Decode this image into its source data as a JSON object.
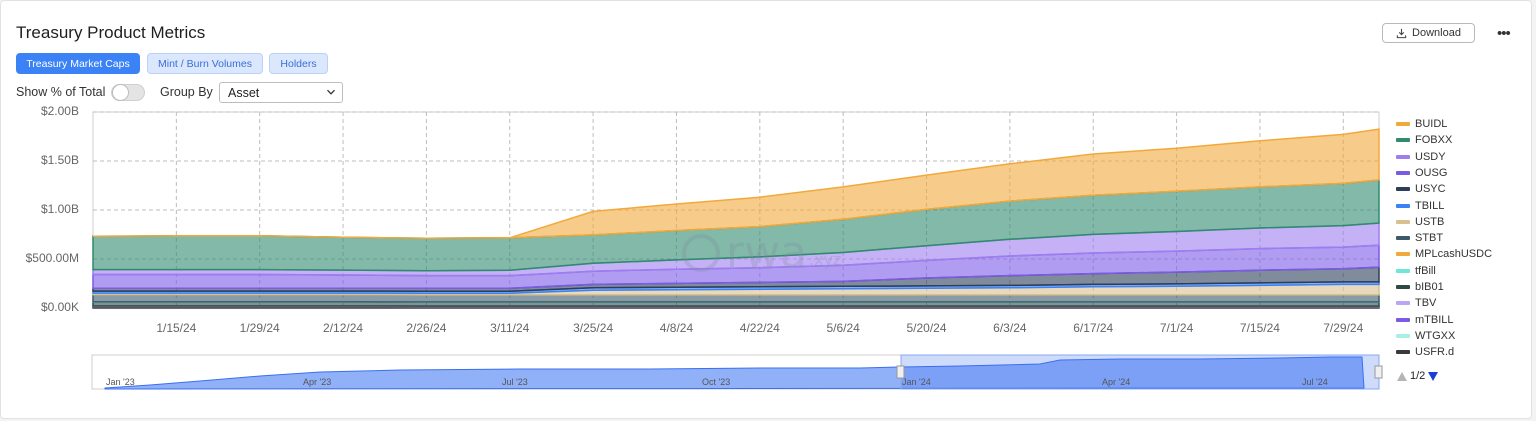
{
  "header": {
    "title": "Treasury Product Metrics",
    "download_label": "Download",
    "more_label": "•••"
  },
  "tabs": [
    {
      "label": "Treasury Market Caps",
      "active": true
    },
    {
      "label": "Mint / Burn Volumes",
      "active": false
    },
    {
      "label": "Holders",
      "active": false
    }
  ],
  "controls": {
    "show_pct_label": "Show % of Total",
    "show_pct_value": false,
    "group_by_label": "Group By",
    "group_by_value": "Asset"
  },
  "watermark": {
    "text": "rwa",
    "suffix": ".xyz"
  },
  "legend": {
    "items": [
      {
        "name": "BUIDL",
        "color": "#f2a93b"
      },
      {
        "name": "FOBXX",
        "color": "#2f8a6e"
      },
      {
        "name": "USDY",
        "color": "#9d7df0"
      },
      {
        "name": "OUSG",
        "color": "#7b5ae6"
      },
      {
        "name": "USYC",
        "color": "#2c3e5a"
      },
      {
        "name": "TBILL",
        "color": "#3b82f6"
      },
      {
        "name": "USTB",
        "color": "#d9c08f"
      },
      {
        "name": "STBT",
        "color": "#3b5a6b"
      },
      {
        "name": "MPLcashUSDC",
        "color": "#f2a93b"
      },
      {
        "name": "tfBill",
        "color": "#6ee7d8"
      },
      {
        "name": "bIB01",
        "color": "#2d4a45"
      },
      {
        "name": "TBV",
        "color": "#b9a7f5"
      },
      {
        "name": "mTBILL",
        "color": "#7b5ae6"
      },
      {
        "name": "WTGXX",
        "color": "#a8f0e6"
      },
      {
        "name": "USFR.d",
        "color": "#3a3a3a"
      }
    ],
    "page": "1/2"
  },
  "navigator": {
    "labels": [
      "Jan '23",
      "Apr '23",
      "Jul '23",
      "Oct '23",
      "Jan '24",
      "Apr '24",
      "Jul '24"
    ]
  },
  "chart_data": {
    "type": "area",
    "stacked": true,
    "title": "",
    "xlabel": "",
    "ylabel": "",
    "ylim": [
      0,
      2000000000
    ],
    "y_tick_labels": [
      "$2.00B",
      "$1.50B",
      "$1.00B",
      "$500.00M",
      "$0.00K"
    ],
    "y_tick_values": [
      2000000000,
      1500000000,
      1000000000,
      500000000,
      0
    ],
    "x_tick_labels": [
      "1/15/24",
      "1/29/24",
      "2/12/24",
      "2/26/24",
      "3/11/24",
      "3/25/24",
      "4/8/24",
      "4/22/24",
      "5/6/24",
      "5/20/24",
      "6/3/24",
      "6/17/24",
      "7/1/24",
      "7/15/24",
      "7/29/24"
    ],
    "x": [
      "2024-01-01",
      "2024-01-15",
      "2024-01-29",
      "2024-02-12",
      "2024-02-26",
      "2024-03-11",
      "2024-03-25",
      "2024-04-08",
      "2024-04-22",
      "2024-05-06",
      "2024-05-20",
      "2024-06-03",
      "2024-06-17",
      "2024-07-01",
      "2024-07-15",
      "2024-07-29",
      "2024-08-04"
    ],
    "grid": true,
    "legend_position": "right",
    "series": [
      {
        "name": "USFR.d",
        "color": "#3a3a3a",
        "values": [
          15,
          15,
          15,
          15,
          14,
          14,
          14,
          14,
          14,
          14,
          14,
          14,
          14,
          14,
          14,
          14,
          14
        ]
      },
      {
        "name": "WTGXX",
        "color": "#a8f0e6",
        "values": [
          0,
          0,
          0,
          0,
          0,
          0,
          0,
          0,
          0,
          0,
          0,
          0,
          0,
          0,
          0,
          0,
          0
        ]
      },
      {
        "name": "mTBILL",
        "color": "#7b5ae6",
        "values": [
          0,
          0,
          0,
          0,
          0,
          0,
          0,
          0,
          0,
          0,
          0,
          0,
          0,
          0,
          0,
          0,
          0
        ]
      },
      {
        "name": "TBV",
        "color": "#b9a7f5",
        "values": [
          5,
          5,
          5,
          5,
          5,
          5,
          5,
          5,
          5,
          5,
          5,
          5,
          5,
          5,
          5,
          5,
          5
        ]
      },
      {
        "name": "bIB01",
        "color": "#2d4a45",
        "values": [
          40,
          40,
          40,
          40,
          40,
          40,
          40,
          40,
          40,
          40,
          40,
          40,
          40,
          40,
          40,
          40,
          40
        ]
      },
      {
        "name": "tfBill",
        "color": "#6ee7d8",
        "values": [
          2,
          2,
          2,
          2,
          2,
          2,
          2,
          2,
          2,
          2,
          2,
          2,
          2,
          2,
          2,
          2,
          2
        ]
      },
      {
        "name": "MPLcashUSDC",
        "color": "#f2a93b",
        "values": [
          0,
          0,
          0,
          0,
          0,
          0,
          0,
          0,
          0,
          0,
          0,
          0,
          0,
          0,
          0,
          0,
          0
        ]
      },
      {
        "name": "STBT",
        "color": "#3b5a6b",
        "values": [
          75,
          75,
          75,
          75,
          75,
          75,
          75,
          75,
          75,
          75,
          75,
          75,
          75,
          75,
          75,
          75,
          75
        ]
      },
      {
        "name": "USTB",
        "color": "#d9c08f",
        "values": [
          15,
          15,
          15,
          15,
          15,
          15,
          45,
          50,
          55,
          60,
          65,
          70,
          80,
          85,
          95,
          105,
          105
        ]
      },
      {
        "name": "TBILL",
        "color": "#3b82f6",
        "values": [
          20,
          20,
          20,
          20,
          20,
          20,
          25,
          25,
          25,
          25,
          25,
          25,
          25,
          25,
          25,
          25,
          25
        ]
      },
      {
        "name": "USYC",
        "color": "#2c3e5a",
        "values": [
          30,
          30,
          30,
          30,
          30,
          30,
          35,
          40,
          45,
          50,
          80,
          100,
          110,
          120,
          130,
          135,
          150
        ]
      },
      {
        "name": "OUSG",
        "color": "#7b5ae6",
        "values": [
          140,
          140,
          140,
          135,
          130,
          130,
          135,
          145,
          150,
          165,
          180,
          200,
          210,
          215,
          220,
          220,
          225
        ]
      },
      {
        "name": "USDY",
        "color": "#9d7df0",
        "values": [
          50,
          50,
          50,
          50,
          50,
          55,
          80,
          95,
          110,
          130,
          150,
          170,
          190,
          200,
          210,
          220,
          225
        ]
      },
      {
        "name": "FOBXX",
        "color": "#2f8a6e",
        "values": [
          340,
          345,
          345,
          335,
          330,
          330,
          290,
          300,
          310,
          340,
          370,
          390,
          400,
          410,
          420,
          430,
          440
        ]
      },
      {
        "name": "BUIDL",
        "color": "#f2a93b",
        "values": [
          0,
          0,
          0,
          0,
          0,
          0,
          240,
          270,
          300,
          330,
          350,
          380,
          420,
          440,
          470,
          500,
          520
        ]
      }
    ],
    "value_unit": "USD millions"
  }
}
